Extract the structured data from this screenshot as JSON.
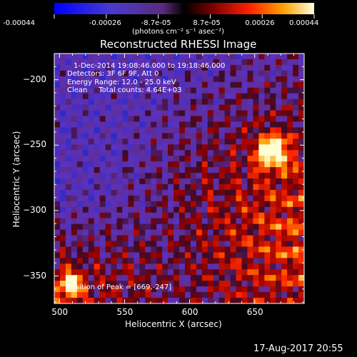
{
  "colorbar": {
    "ticks": [
      "-0.00044",
      "-0.00026",
      "-8.7e-05",
      "8.7e-05",
      "0.00026",
      "0.00044"
    ],
    "unit_label": "(photons cm⁻² s⁻¹ asec⁻²)",
    "range": [
      -0.00044,
      0.00044
    ]
  },
  "info": {
    "line1": "1-Dec-2014 19:08:46.000 to 19:18:46.000",
    "line2": "Detectors: 3F 6F 9F, Att 0",
    "line3": "Energy Range: 12.0 - 25.0 keV",
    "line4": "Clean     Total counts: 4.64E+03",
    "peak": "Position of Peak = [669,-247]"
  },
  "footer_timestamp": "17-Aug-2017 20:55",
  "chart_data": {
    "type": "heatmap",
    "title": "Reconstructed RHESSI Image",
    "xlabel": "Heliocentric X (arcsec)",
    "ylabel": "Heliocentric Y (arcsec)",
    "xlim": [
      496,
      688
    ],
    "ylim": [
      -371,
      -180
    ],
    "x_ticks": [
      500,
      550,
      600,
      650
    ],
    "y_ticks": [
      -200,
      -250,
      -300,
      -350
    ],
    "x_tick_labels": [
      "500",
      "550",
      "600",
      "650"
    ],
    "y_tick_labels": [
      "−200",
      "−250",
      "−300",
      "−350"
    ],
    "peak_position": [
      669,
      -247
    ],
    "colormap": [
      "#0000ff",
      "#3a2aa8",
      "#6030b0",
      "#200010",
      "#a00000",
      "#ff3000",
      "#ffa000",
      "#ffffd0"
    ]
  }
}
